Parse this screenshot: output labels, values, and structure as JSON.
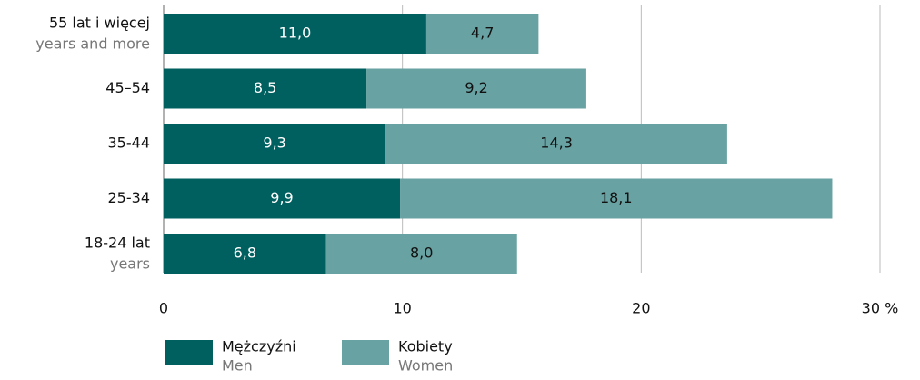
{
  "chart_data": {
    "type": "stacked_barh",
    "categories": [
      "55 lat i więcej",
      "45–54",
      "35-44",
      "25-34",
      "18-24 lat"
    ],
    "category_sublabels": [
      "years and more",
      null,
      null,
      null,
      "years"
    ],
    "series": [
      {
        "name": "Mężczyźni",
        "name_sub": "Men",
        "color": "#005f5f",
        "label_color": "#ffffff",
        "values": [
          11.0,
          8.5,
          9.3,
          9.9,
          6.8
        ],
        "value_labels": [
          "11,0",
          "8,5",
          "9,3",
          "9,9",
          "6,8"
        ]
      },
      {
        "name": "Kobiety",
        "name_sub": "Women",
        "color": "#68a2a3",
        "label_color": "#111111",
        "values": [
          4.7,
          9.2,
          14.3,
          18.1,
          8.0
        ],
        "value_labels": [
          "4,7",
          "9,2",
          "14,3",
          "18,1",
          "8,0"
        ]
      }
    ],
    "xlim": [
      0,
      30
    ],
    "xticks": [
      0,
      10,
      20,
      {
        "value": 30,
        "label": "30 %"
      }
    ],
    "grid": true
  }
}
